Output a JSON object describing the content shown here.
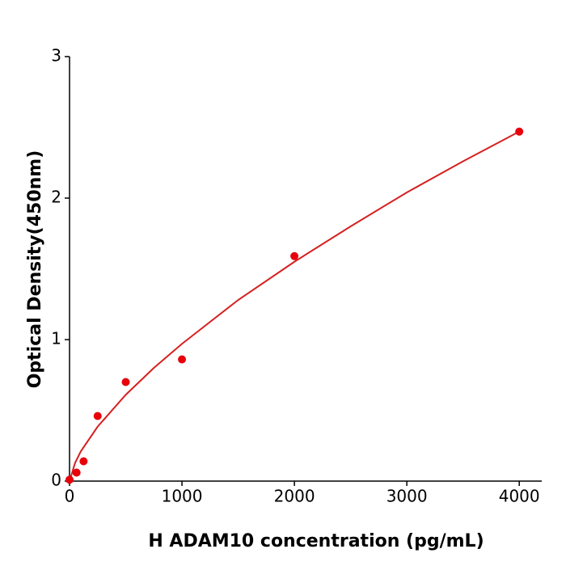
{
  "chart_data": {
    "type": "scatter",
    "x_label": "H  ADAM10 concentration (pg/mL)",
    "y_label": "Optical Density(450nm)",
    "points": {
      "color": "#e8000b",
      "x": [
        0,
        62.5,
        125,
        250,
        500,
        1000,
        2000,
        4000
      ],
      "y": [
        0.01,
        0.06,
        0.14,
        0.46,
        0.7,
        0.86,
        1.59,
        2.47
      ]
    },
    "fit": {
      "color": "#d62020",
      "x": [
        0,
        50,
        100,
        250,
        500,
        750,
        1000,
        1500,
        2000,
        2500,
        3000,
        3500,
        4000
      ],
      "y": [
        0,
        0.13,
        0.21,
        0.385,
        0.61,
        0.8,
        0.97,
        1.28,
        1.55,
        1.8,
        2.04,
        2.26,
        2.47
      ]
    },
    "xlim": [
      0,
      4200
    ],
    "xticks": [
      0,
      1000,
      2000,
      3000,
      4000
    ],
    "ylim": [
      0,
      3
    ],
    "yticks": [
      0,
      1,
      2,
      3
    ]
  }
}
